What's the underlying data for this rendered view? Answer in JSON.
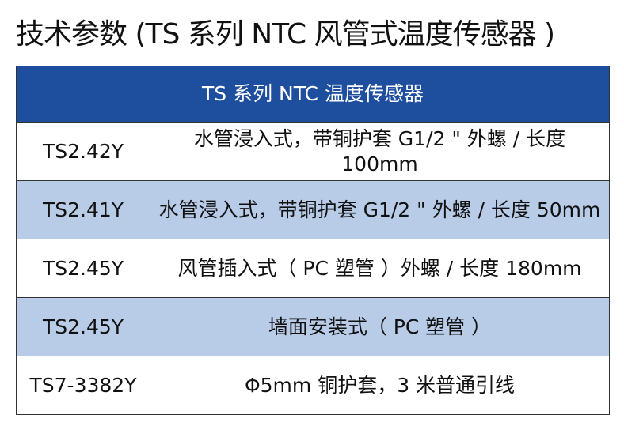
{
  "header": {
    "title": "技术参数 (TS 系列 NTC 风管式温度传感器 )"
  },
  "table": {
    "caption": "TS 系列 NTC 温度传感器",
    "rows": [
      [
        "TS2.42Y",
        "水管浸入式，带铜护套 G1/2 \" 外螺 / 长度 100mm"
      ],
      [
        "TS2.41Y",
        "水管浸入式，带铜护套 G1/2 \" 外螺 / 长度 50mm"
      ],
      [
        "TS2.45Y",
        "风管插入式（ PC 塑管 ）外螺 / 长度 180mm"
      ],
      [
        "TS2.45Y",
        "墙面安装式（ PC 塑管 ）"
      ],
      [
        "TS7-3382Y",
        "Φ5mm 铜护套，3 米普通引线"
      ]
    ]
  }
}
